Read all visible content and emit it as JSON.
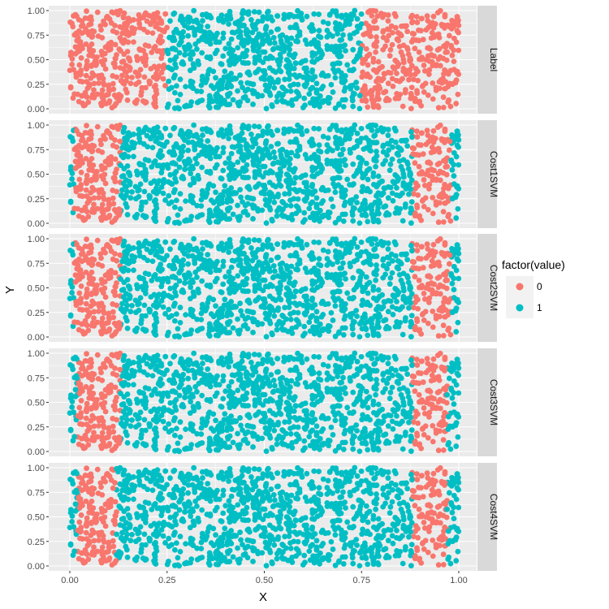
{
  "chart_data": {
    "type": "scatter",
    "facet_layout": "vertical facets with strip labels on the right",
    "xlabel": "X",
    "ylabel": "Y",
    "xlim": [
      0,
      1
    ],
    "ylim": [
      0,
      1
    ],
    "x_ticks": [
      "0.00",
      "0.25",
      "0.50",
      "0.75",
      "1.00"
    ],
    "y_ticks": [
      "0.00",
      "0.25",
      "0.50",
      "0.75",
      "1.00"
    ],
    "grid": true,
    "legend": {
      "title": "factor(value)",
      "placement": "right",
      "entries": [
        {
          "label": "0",
          "color": "#F8766D"
        },
        {
          "label": "1",
          "color": "#00BFC4"
        }
      ]
    },
    "points_per_panel": 1400,
    "facets": [
      {
        "label": "Label",
        "class0_x_ranges": [
          [
            0.0,
            0.25
          ],
          [
            0.75,
            1.0
          ]
        ]
      },
      {
        "label": "Cost1SVM",
        "class0_x_ranges": [
          [
            0.01,
            0.13
          ],
          [
            0.88,
            0.98
          ]
        ]
      },
      {
        "label": "Cost2SVM",
        "class0_x_ranges": [
          [
            0.01,
            0.13
          ],
          [
            0.88,
            0.98
          ]
        ]
      },
      {
        "label": "Cost3SVM",
        "class0_x_ranges": [
          [
            0.02,
            0.13
          ],
          [
            0.88,
            0.97
          ]
        ]
      },
      {
        "label": "Cost4SVM",
        "class0_x_ranges": [
          [
            0.02,
            0.12
          ],
          [
            0.88,
            0.97
          ]
        ]
      }
    ]
  }
}
